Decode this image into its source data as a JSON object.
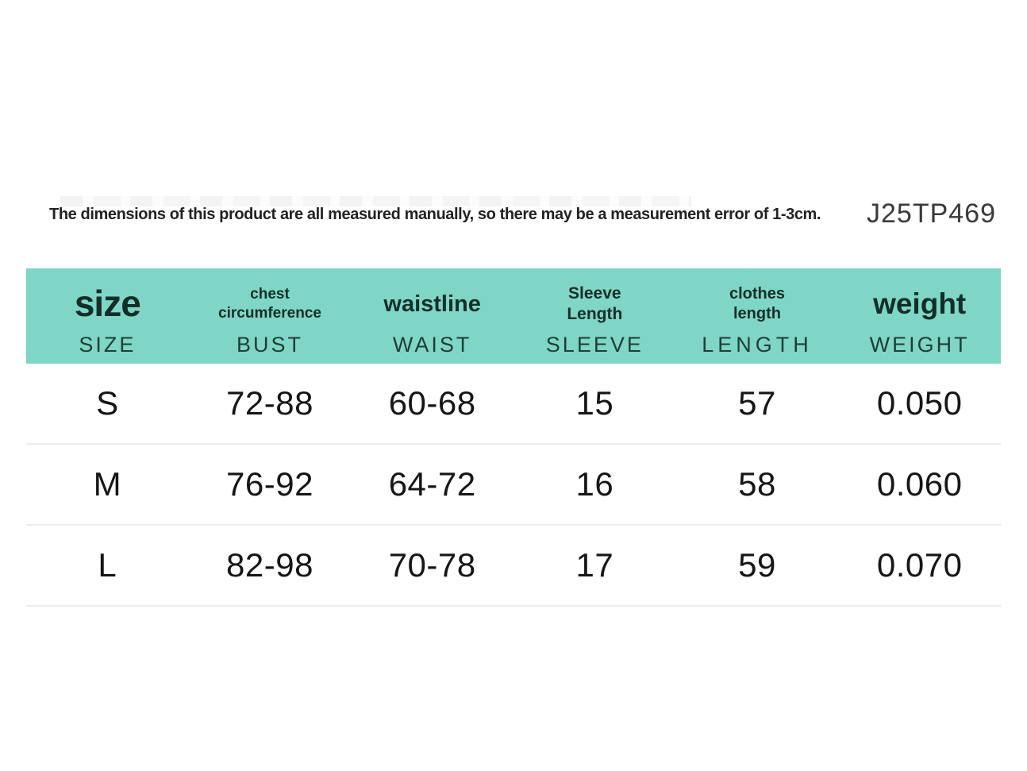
{
  "note": {
    "disclaimer": "The dimensions of this product are all measured manually, so there may be a measurement error of 1-3cm.",
    "product_code": "J25TP469"
  },
  "colors": {
    "header_bg": "#7fd6c6",
    "header_text": "#122e29",
    "subheader_text": "#1d3e37",
    "body_text": "#161616",
    "separator": "#ececec",
    "background": "#ffffff"
  },
  "chart_data": {
    "type": "table",
    "columns": [
      {
        "label": "size",
        "sublabel": "SIZE"
      },
      {
        "label": "chest\ncircumference",
        "sublabel": "BUST"
      },
      {
        "label": "waistline",
        "sublabel": "WAIST"
      },
      {
        "label": "Sleeve\nLength",
        "sublabel": "SLEEVE"
      },
      {
        "label": "clothes\nlength",
        "sublabel": "LENGTH"
      },
      {
        "label": "weight",
        "sublabel": "WEIGHT"
      }
    ],
    "rows": [
      [
        "S",
        "72-88",
        "60-68",
        "15",
        "57",
        "0.050"
      ],
      [
        "M",
        "76-92",
        "64-72",
        "16",
        "58",
        "0.060"
      ],
      [
        "L",
        "82-98",
        "70-78",
        "17",
        "59",
        "0.070"
      ]
    ]
  }
}
